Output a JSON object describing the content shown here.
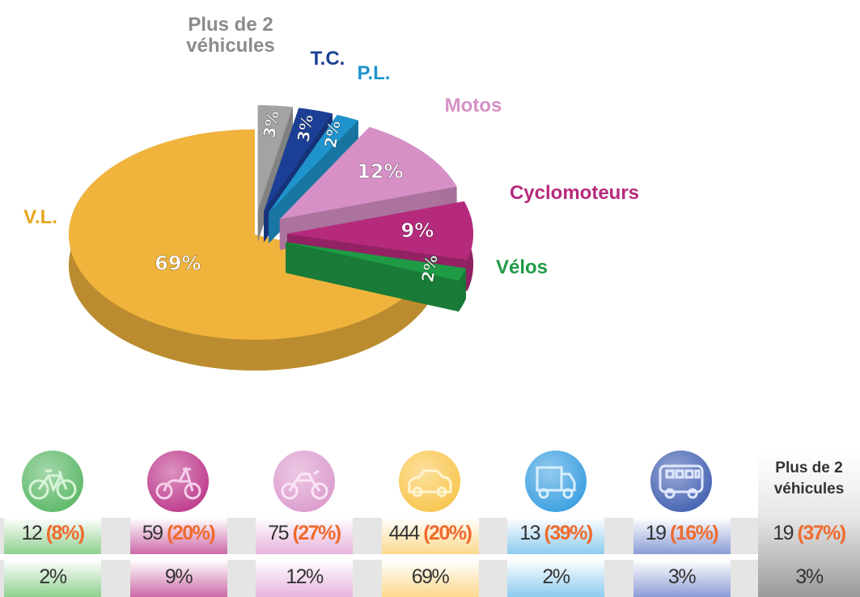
{
  "chart_data": {
    "type": "pie",
    "categories": [
      "Plus de 2 véhicules",
      "T.C.",
      "P.L.",
      "Motos",
      "Cyclomoteurs",
      "Vélos",
      "V.L."
    ],
    "values": [
      3,
      3,
      2,
      12,
      9,
      2,
      69
    ],
    "value_labels": [
      "3%",
      "3%",
      "2%",
      "12%",
      "9%",
      "2%",
      "69%"
    ],
    "colors": [
      "#a3a3a3",
      "#1c3f96",
      "#1f93cc",
      "#d690c6",
      "#b62a7c",
      "#1f9a45",
      "#f0b43c"
    ]
  },
  "table": {
    "header": "Plus de 2 véhicules",
    "columns": [
      {
        "count": "12",
        "rate": "(8%)",
        "share": "2%"
      },
      {
        "count": "59",
        "rate": "(20%)",
        "share": "9%"
      },
      {
        "count": "75",
        "rate": "(27%)",
        "share": "12%"
      },
      {
        "count": "444",
        "rate": "(20%)",
        "share": "69%"
      },
      {
        "count": "13",
        "rate": "(39%)",
        "share": "2%"
      },
      {
        "count": "19",
        "rate": "(16%)",
        "share": "3%"
      },
      {
        "count": "19",
        "rate": "(37%)",
        "share": "3%"
      }
    ]
  }
}
